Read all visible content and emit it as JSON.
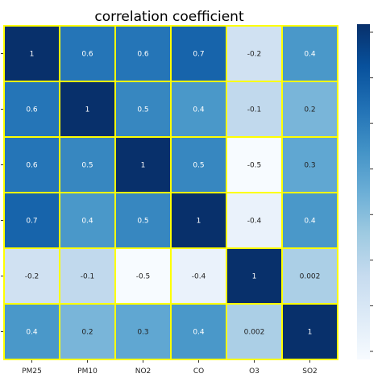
{
  "chart_data": {
    "type": "heatmap",
    "title": "correlation coefficient",
    "categories": [
      "PM25",
      "PM10",
      "NO2",
      "CO",
      "O3",
      "SO2"
    ],
    "matrix": [
      [
        1,
        0.6,
        0.6,
        0.7,
        -0.2,
        0.4
      ],
      [
        0.6,
        1,
        0.5,
        0.4,
        -0.1,
        0.2
      ],
      [
        0.6,
        0.5,
        1,
        0.5,
        -0.5,
        0.3
      ],
      [
        0.7,
        0.4,
        0.5,
        1,
        -0.4,
        0.4
      ],
      [
        -0.2,
        -0.1,
        -0.5,
        -0.4,
        1,
        0.002
      ],
      [
        0.4,
        0.2,
        0.3,
        0.4,
        0.002,
        1
      ]
    ],
    "cell_labels": [
      [
        "1",
        "0.6",
        "0.6",
        "0.7",
        "-0.2",
        "0.4"
      ],
      [
        "0.6",
        "1",
        "0.5",
        "0.4",
        "-0.1",
        "0.2"
      ],
      [
        "0.6",
        "0.5",
        "1",
        "0.5",
        "-0.5",
        "0.3"
      ],
      [
        "0.7",
        "0.4",
        "0.5",
        "1",
        "-0.4",
        "0.4"
      ],
      [
        "-0.2",
        "-0.1",
        "-0.5",
        "-0.4",
        "1",
        "0.002"
      ],
      [
        "0.4",
        "0.2",
        "0.3",
        "0.4",
        "0.002",
        "1"
      ]
    ],
    "value_range": [
      -0.5,
      1
    ],
    "colormap": "Blues",
    "cell_border_color": "#ffff00",
    "colorbar": true
  }
}
